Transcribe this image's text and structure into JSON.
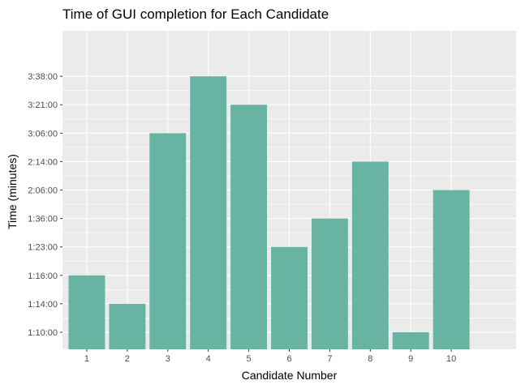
{
  "chart_data": {
    "type": "bar",
    "title": "Time of GUI completion for Each Candidate",
    "xlabel": "Candidate Number",
    "ylabel": "Time (minutes)",
    "categories": [
      "1",
      "2",
      "3",
      "4",
      "5",
      "6",
      "7",
      "8",
      "9",
      "10"
    ],
    "y_tick_labels": [
      "1:10:00",
      "1:14:00",
      "1:16:00",
      "1:23:00",
      "1:36:00",
      "2:06:00",
      "2:14:00",
      "3:06:00",
      "3:21:00",
      "3:38:00"
    ],
    "values": [
      "1:16:00",
      "1:14:00",
      "3:06:00",
      "3:38:00",
      "3:21:00",
      "1:23:00",
      "1:36:00",
      "2:14:00",
      "1:10:00",
      "2:06:00"
    ],
    "y_axis": "categorical (ordered time labels)",
    "grid": true,
    "legend": "none",
    "colors": {
      "bar": "#69b3a2",
      "panel": "#ebebeb",
      "grid": "#ffffff",
      "tick_text": "#4d4d4d",
      "tick_mark": "#333333"
    }
  }
}
